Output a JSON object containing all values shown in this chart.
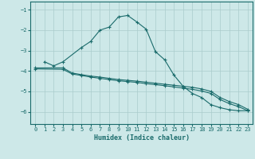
{
  "xlabel": "Humidex (Indice chaleur)",
  "bg_color": "#cde8e8",
  "grid_color": "#aacccc",
  "line_color": "#1a6b6b",
  "xlim": [
    -0.5,
    23.5
  ],
  "ylim": [
    -6.6,
    -0.6
  ],
  "yticks": [
    -6,
    -5,
    -4,
    -3,
    -2,
    -1
  ],
  "xticks": [
    0,
    1,
    2,
    3,
    4,
    5,
    6,
    7,
    8,
    9,
    10,
    11,
    12,
    13,
    14,
    15,
    16,
    17,
    18,
    19,
    20,
    21,
    22,
    23
  ],
  "line1_x": [
    1,
    2,
    3,
    5,
    6,
    7,
    8,
    9,
    10,
    11,
    12,
    13,
    14,
    15,
    16,
    17,
    18,
    19,
    20,
    21,
    22,
    23
  ],
  "line1_y": [
    -3.55,
    -3.75,
    -3.55,
    -2.85,
    -2.55,
    -2.0,
    -1.85,
    -1.35,
    -1.28,
    -1.6,
    -1.95,
    -3.05,
    -3.45,
    -4.2,
    -4.75,
    -5.1,
    -5.3,
    -5.65,
    -5.8,
    -5.9,
    -5.95,
    -5.95
  ],
  "line2_x": [
    0,
    3,
    4,
    5,
    6,
    7,
    8,
    9,
    10,
    11,
    12,
    13,
    14,
    15,
    16,
    17,
    18,
    19,
    20,
    21,
    22,
    23
  ],
  "line2_y": [
    -3.85,
    -3.85,
    -4.1,
    -4.18,
    -4.25,
    -4.3,
    -4.36,
    -4.42,
    -4.46,
    -4.5,
    -4.55,
    -4.6,
    -4.65,
    -4.7,
    -4.75,
    -4.8,
    -4.88,
    -5.0,
    -5.3,
    -5.5,
    -5.65,
    -5.88
  ],
  "line3_x": [
    0,
    3,
    4,
    5,
    6,
    7,
    8,
    9,
    10,
    11,
    12,
    13,
    14,
    15,
    16,
    17,
    18,
    19,
    20,
    21,
    22,
    23
  ],
  "line3_y": [
    -3.9,
    -3.92,
    -4.15,
    -4.22,
    -4.3,
    -4.36,
    -4.42,
    -4.48,
    -4.52,
    -4.56,
    -4.62,
    -4.67,
    -4.72,
    -4.78,
    -4.84,
    -4.9,
    -4.98,
    -5.1,
    -5.4,
    -5.6,
    -5.75,
    -5.95
  ]
}
